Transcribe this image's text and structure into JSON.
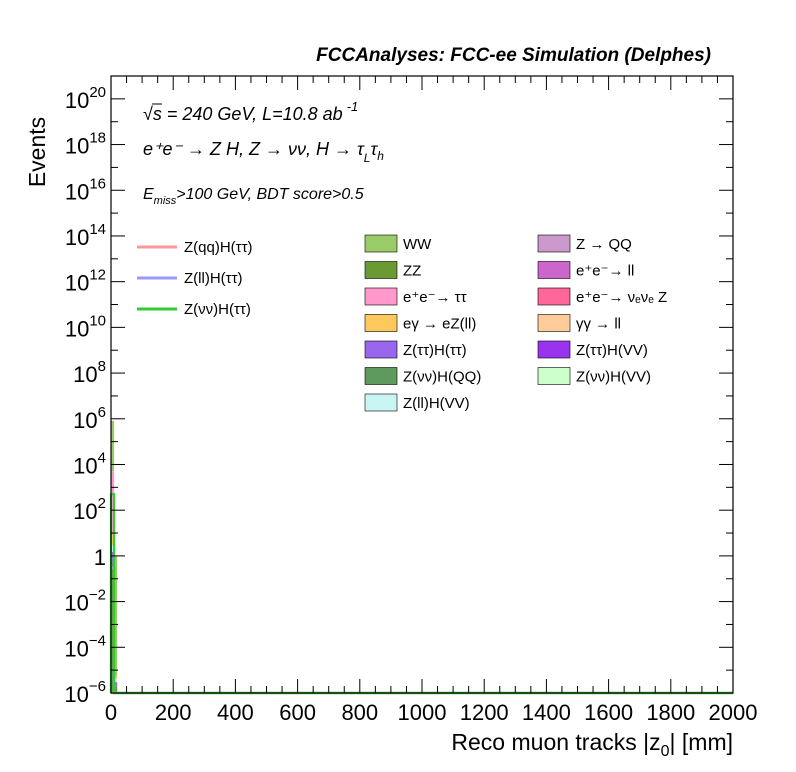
{
  "chart_data": {
    "type": "bar",
    "stacked": true,
    "log_y": true,
    "header": "FCCAnalyses: FCC-ee Simulation (Delphes)",
    "annotations": {
      "line1": "√s = 240 GeV, L=10.8 ab",
      "line1_sup": "-1",
      "line2": "e⁺e⁻ → Z H, Z → νν, H → τ",
      "line2_sub_a": "L",
      "line2_tau": "τ",
      "line2_sub_b": "h",
      "line3_prefix": "E",
      "line3_sub": "miss",
      "line3_rest": ">100 GeV, BDT score>0.5"
    },
    "xlabel": "Reco muon tracks |z",
    "xlabel_sub": "0",
    "xlabel_suffix": "| [mm]",
    "ylabel": "Events",
    "xlim": [
      0,
      2000
    ],
    "ylim": [
      1e-06,
      1e+21
    ],
    "x_ticks": [
      0,
      200,
      400,
      600,
      800,
      1000,
      1200,
      1400,
      1600,
      1800,
      2000
    ],
    "x_tick_labels": [
      "0",
      "200",
      "400",
      "600",
      "800",
      "1000",
      "1200",
      "1400",
      "1600",
      "1800",
      "2000"
    ],
    "y_ticks": [
      {
        "value": 1e-06,
        "base": "10",
        "exp": "−6"
      },
      {
        "value": 0.0001,
        "base": "10",
        "exp": "−4"
      },
      {
        "value": 0.01,
        "base": "10",
        "exp": "−2"
      },
      {
        "value": 1,
        "base": "1",
        "exp": ""
      },
      {
        "value": 100.0,
        "base": "10",
        "exp": "2"
      },
      {
        "value": 10000.0,
        "base": "10",
        "exp": "4"
      },
      {
        "value": 1000000.0,
        "base": "10",
        "exp": "6"
      },
      {
        "value": 100000000.0,
        "base": "10",
        "exp": "8"
      },
      {
        "value": 10000000000.0,
        "base": "10",
        "exp": "10"
      },
      {
        "value": 1000000000000.0,
        "base": "10",
        "exp": "12"
      },
      {
        "value": 100000000000000.0,
        "base": "10",
        "exp": "14"
      },
      {
        "value": 1e+16,
        "base": "10",
        "exp": "16"
      },
      {
        "value": 1e+18,
        "base": "10",
        "exp": "18"
      },
      {
        "value": 1e+20,
        "base": "10",
        "exp": "20"
      }
    ],
    "bin_edges": [
      0,
      10,
      20
    ],
    "stack": [
      {
        "name": "Z(νν)H(QQ)",
        "color": "#5e9a5e",
        "values": [
          1e-05,
          1e-06
        ]
      },
      {
        "name": "ZZ",
        "color": "#6a9a34",
        "values": [
          0.5,
          1e-06
        ]
      },
      {
        "name": "Z(ττ)H(ττ)",
        "color": "#9966ee",
        "values": [
          1.0,
          1e-06
        ]
      },
      {
        "name": "Z(ll)H(VV)",
        "color": "#c8f4f4",
        "values": [
          1.5,
          1e-06
        ]
      },
      {
        "name": "eγ → eZ(ll)",
        "color": "#fec95c",
        "values": [
          5.0,
          1e-06
        ]
      },
      {
        "name": "e⁺e⁻→ ττ",
        "color": "#ff99cc",
        "values": [
          5000,
          1e-06
        ]
      },
      {
        "name": "WW",
        "color": "#99cc66",
        "values": [
          800000,
          1.0
        ]
      }
    ],
    "signals": [
      {
        "name": "Z(qq)H(ττ)",
        "color": "#ff9999",
        "values": [
          1e-07,
          1e-07
        ]
      },
      {
        "name": "Z(ll)H(ττ)",
        "color": "#9999ff",
        "values": [
          0.3,
          1e-07
        ]
      },
      {
        "name": "Z(νν)H(ττ)",
        "color": "#33cc33",
        "values": [
          500,
          1e-07
        ]
      }
    ],
    "legend_lines": [
      {
        "name": "Z(qq)H(ττ)",
        "color": "#ff9999"
      },
      {
        "name": "Z(ll)H(ττ)",
        "color": "#9999ff"
      },
      {
        "name": "Z(νν)H(ττ)",
        "color": "#33cc33"
      }
    ],
    "legend_boxes_col1": [
      {
        "name": "WW",
        "color": "#99cc66"
      },
      {
        "name": "ZZ",
        "color": "#6a9a34"
      },
      {
        "name": "e⁺e⁻→ ττ",
        "color": "#ff99cc"
      },
      {
        "name": "eγ → eZ(ll)",
        "color": "#fec95c"
      },
      {
        "name": "Z(ττ)H(ττ)",
        "color": "#9966ee"
      },
      {
        "name": "Z(νν)H(QQ)",
        "color": "#5e9a5e"
      },
      {
        "name": "Z(ll)H(VV)",
        "color": "#c8f4f4"
      }
    ],
    "legend_boxes_col2": [
      {
        "name": "Z → QQ",
        "color": "#cc99cc"
      },
      {
        "name": "e⁺e⁻→ ll",
        "color": "#cc66cc"
      },
      {
        "name": "e⁺e⁻→ νₑνₑ Z",
        "color": "#ff6699"
      },
      {
        "name": "γγ → ll",
        "color": "#ffcc99"
      },
      {
        "name": "Z(ττ)H(VV)",
        "color": "#9933ee"
      },
      {
        "name": "Z(νν)H(VV)",
        "color": "#ccffcc"
      }
    ]
  }
}
